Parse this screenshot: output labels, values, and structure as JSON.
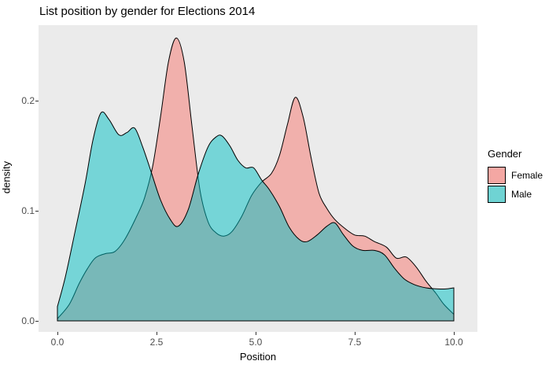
{
  "title": "List position by gender for Elections 2014",
  "chart_data": {
    "type": "area",
    "subtype": "density",
    "title": "List position by gender for Elections 2014",
    "xlabel": "Position",
    "ylabel": "density",
    "grid": false,
    "panel_bg": "#EBEBEB",
    "outline_color": "#000000",
    "fill_alpha": 0.5,
    "xlim": [
      -0.48,
      10.6
    ],
    "ylim": [
      0,
      0.2686
    ],
    "x_ticks": [
      0.0,
      2.5,
      5.0,
      7.5,
      10.0
    ],
    "x_tick_labels": [
      "0.0",
      "2.5",
      "5.0",
      "7.5",
      "10.0"
    ],
    "y_ticks": [
      0.0,
      0.1,
      0.2
    ],
    "y_tick_labels": [
      "0.0",
      "0.1",
      "0.2"
    ],
    "legend": {
      "title": "Gender",
      "position": "right",
      "entries": [
        {
          "label": "Female",
          "swatch_color": "#F4A7A3"
        },
        {
          "label": "Male",
          "swatch_color": "#6FD3D3"
        }
      ]
    },
    "series": [
      {
        "name": "Female",
        "color": "#F8766D",
        "x": [
          0,
          0.3,
          0.55,
          0.75,
          0.95,
          1.2,
          1.45,
          1.7,
          2.0,
          2.2,
          2.4,
          2.6,
          2.8,
          3.0,
          3.2,
          3.4,
          3.6,
          3.8,
          4.0,
          4.2,
          4.4,
          4.65,
          4.9,
          5.15,
          5.4,
          5.6,
          5.8,
          6.0,
          6.2,
          6.4,
          6.6,
          6.8,
          7.0,
          7.25,
          7.5,
          7.75,
          8.0,
          8.3,
          8.55,
          8.8,
          9.05,
          9.3,
          9.55,
          9.75,
          10.0
        ],
        "y": [
          0.002,
          0.015,
          0.034,
          0.047,
          0.057,
          0.061,
          0.063,
          0.074,
          0.095,
          0.112,
          0.14,
          0.185,
          0.235,
          0.257,
          0.235,
          0.175,
          0.118,
          0.09,
          0.08,
          0.077,
          0.081,
          0.095,
          0.114,
          0.126,
          0.134,
          0.15,
          0.178,
          0.203,
          0.185,
          0.148,
          0.116,
          0.102,
          0.092,
          0.084,
          0.078,
          0.077,
          0.072,
          0.067,
          0.057,
          0.058,
          0.049,
          0.036,
          0.025,
          0.015,
          0.006
        ]
      },
      {
        "name": "Male",
        "color": "#00BFC4",
        "x": [
          0,
          0.2,
          0.45,
          0.7,
          0.9,
          1.1,
          1.3,
          1.55,
          1.75,
          1.95,
          2.15,
          2.35,
          2.6,
          2.85,
          3.05,
          3.3,
          3.55,
          3.8,
          4.0,
          4.15,
          4.35,
          4.55,
          4.75,
          4.95,
          5.15,
          5.35,
          5.6,
          5.85,
          6.1,
          6.3,
          6.55,
          6.8,
          7.0,
          7.2,
          7.45,
          7.7,
          8.0,
          8.25,
          8.5,
          8.75,
          9.0,
          9.3,
          9.6,
          9.8,
          10.0
        ],
        "y": [
          0.013,
          0.04,
          0.082,
          0.125,
          0.165,
          0.189,
          0.183,
          0.169,
          0.171,
          0.175,
          0.158,
          0.137,
          0.11,
          0.092,
          0.086,
          0.101,
          0.133,
          0.158,
          0.167,
          0.168,
          0.159,
          0.146,
          0.139,
          0.139,
          0.128,
          0.119,
          0.104,
          0.085,
          0.074,
          0.072,
          0.078,
          0.086,
          0.089,
          0.079,
          0.068,
          0.064,
          0.064,
          0.06,
          0.048,
          0.038,
          0.033,
          0.03,
          0.029,
          0.029,
          0.03
        ]
      }
    ]
  }
}
